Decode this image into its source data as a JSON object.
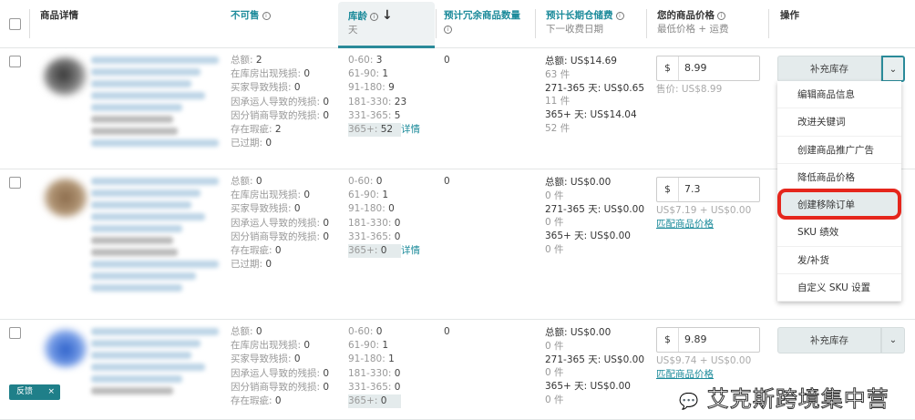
{
  "header": {
    "product_details": "商品详情",
    "unsellable": "不可售",
    "inventory_age": "库龄",
    "inventory_age_unit": "天",
    "excess_units": "预计冗余商品数量",
    "storage_fee": "预计长期仓储费",
    "storage_fee_sub": "下一收费日期",
    "your_price": "您的商品价格",
    "your_price_sub": "最低价格 + 运费",
    "actions": "操作"
  },
  "rows": [
    {
      "unsellable": [
        [
          "总额:",
          "2"
        ],
        [
          "在库房出现残损:",
          "0"
        ],
        [
          "买家导致残损:",
          "0"
        ],
        [
          "因承运人导致的残损:",
          "0"
        ],
        [
          "因分销商导致的残损:",
          "0"
        ],
        [
          "存在瑕疵:",
          "2"
        ],
        [
          "已过期:",
          "0"
        ]
      ],
      "age": [
        [
          "0-60:",
          "3"
        ],
        [
          "61-90:",
          "1"
        ],
        [
          "91-180:",
          "9"
        ],
        [
          "181-330:",
          "23"
        ],
        [
          "331-365:",
          "5"
        ],
        [
          "365+:",
          "52"
        ]
      ],
      "details_link": "详情",
      "excess": "0",
      "storage": [
        [
          "总额: US$14.69",
          "63 件"
        ],
        [
          "271-365 天: US$0.65",
          "11 件"
        ],
        [
          "365+ 天: US$14.04",
          "52 件"
        ]
      ],
      "price": "8.99",
      "price_note": "售价: US$8.99",
      "price_link": "",
      "action": "补充库存"
    },
    {
      "unsellable": [
        [
          "总额:",
          "0"
        ],
        [
          "在库房出现残损:",
          "0"
        ],
        [
          "买家导致残损:",
          "0"
        ],
        [
          "因承运人导致的残损:",
          "0"
        ],
        [
          "因分销商导致的残损:",
          "0"
        ],
        [
          "存在瑕疵:",
          "0"
        ],
        [
          "已过期:",
          "0"
        ]
      ],
      "age": [
        [
          "0-60:",
          "0"
        ],
        [
          "61-90:",
          "1"
        ],
        [
          "91-180:",
          "0"
        ],
        [
          "181-330:",
          "0"
        ],
        [
          "331-365:",
          "0"
        ],
        [
          "365+:",
          "0"
        ]
      ],
      "details_link": "详情",
      "excess": "0",
      "storage": [
        [
          "总额: US$0.00",
          "0 件"
        ],
        [
          "271-365 天: US$0.00",
          "0 件"
        ],
        [
          "365+ 天: US$0.00",
          "0 件"
        ]
      ],
      "price": "7.3",
      "price_note": "US$7.19 + US$0.00",
      "price_link": "匹配商品价格",
      "action": ""
    },
    {
      "unsellable": [
        [
          "总额:",
          "0"
        ],
        [
          "在库房出现残损:",
          "0"
        ],
        [
          "买家导致残损:",
          "0"
        ],
        [
          "因承运人导致的残损:",
          "0"
        ],
        [
          "因分销商导致的残损:",
          "0"
        ],
        [
          "存在瑕疵:",
          "0"
        ]
      ],
      "age": [
        [
          "0-60:",
          "0"
        ],
        [
          "61-90:",
          "1"
        ],
        [
          "91-180:",
          "1"
        ],
        [
          "181-330:",
          "0"
        ],
        [
          "331-365:",
          "0"
        ],
        [
          "365+:",
          "0"
        ]
      ],
      "details_link": "",
      "excess": "0",
      "storage": [
        [
          "总额: US$0.00",
          "0 件"
        ],
        [
          "271-365 天: US$0.00",
          "0 件"
        ],
        [
          "365+ 天: US$0.00",
          "0 件"
        ]
      ],
      "price": "9.89",
      "price_note": "US$9.74 + US$0.00",
      "price_link": "匹配商品价格",
      "action": "补充库存"
    }
  ],
  "currency_symbol": "$",
  "dropdown_menu": [
    "编辑商品信息",
    "改进关键词",
    "创建商品推广广告",
    "降低商品价格",
    "创建移除订单",
    "SKU 绩效",
    "发/补货",
    "自定义 SKU 设置"
  ],
  "highlighted_menu_item": "创建移除订单",
  "highlight_color": "#e5261c",
  "accent_color": "#1b8a9a",
  "feedback": {
    "label": "反馈",
    "close": "×"
  },
  "watermark": "艾克斯跨境集中营",
  "icons": {
    "info": "info-circle-icon",
    "sort": "arrow-down-icon",
    "caret": "chevron-down-icon"
  }
}
